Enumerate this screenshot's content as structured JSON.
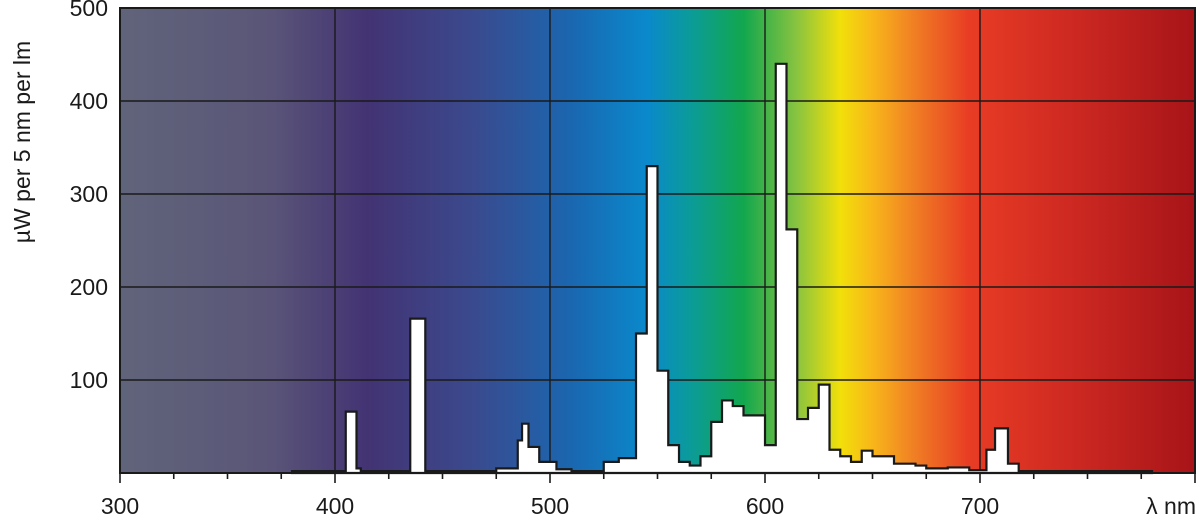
{
  "chart_data": {
    "type": "area",
    "xlabel": "λ nm",
    "ylabel": "µW per 5 nm per lm",
    "xlim": [
      300,
      800
    ],
    "ylim": [
      0,
      500
    ],
    "x_ticks": [
      300,
      400,
      500,
      600,
      700
    ],
    "x_tick_labels": [
      "300",
      "400",
      "500",
      "600",
      "700"
    ],
    "y_ticks": [
      100,
      200,
      300,
      400,
      500
    ],
    "y_tick_labels": [
      "100",
      "200",
      "300",
      "400",
      "500"
    ],
    "grid": true,
    "background": "visible-spectrum gradient (violet to red)",
    "series": [
      {
        "style": "stepped histogram, white fill, black outline",
        "points": [
          [
            380,
            0
          ],
          [
            380,
            2
          ],
          [
            405,
            2
          ],
          [
            405,
            66
          ],
          [
            410,
            66
          ],
          [
            410,
            5
          ],
          [
            412,
            5
          ],
          [
            412,
            2
          ],
          [
            435,
            2
          ],
          [
            435,
            166
          ],
          [
            442,
            166
          ],
          [
            442,
            2
          ],
          [
            475,
            2
          ],
          [
            475,
            5
          ],
          [
            485,
            5
          ],
          [
            485,
            35
          ],
          [
            487,
            35
          ],
          [
            487,
            53
          ],
          [
            490,
            53
          ],
          [
            490,
            28
          ],
          [
            495,
            28
          ],
          [
            495,
            12
          ],
          [
            503,
            12
          ],
          [
            503,
            4
          ],
          [
            510,
            4
          ],
          [
            510,
            2
          ],
          [
            525,
            2
          ],
          [
            525,
            12
          ],
          [
            532,
            12
          ],
          [
            532,
            16
          ],
          [
            540,
            16
          ],
          [
            540,
            150
          ],
          [
            545,
            150
          ],
          [
            545,
            330
          ],
          [
            550,
            330
          ],
          [
            550,
            110
          ],
          [
            555,
            110
          ],
          [
            555,
            30
          ],
          [
            560,
            30
          ],
          [
            560,
            12
          ],
          [
            565,
            12
          ],
          [
            565,
            8
          ],
          [
            570,
            8
          ],
          [
            570,
            18
          ],
          [
            575,
            18
          ],
          [
            575,
            55
          ],
          [
            580,
            55
          ],
          [
            580,
            78
          ],
          [
            585,
            78
          ],
          [
            585,
            72
          ],
          [
            590,
            72
          ],
          [
            590,
            62
          ],
          [
            600,
            62
          ],
          [
            600,
            30
          ],
          [
            605,
            30
          ],
          [
            605,
            440
          ],
          [
            610,
            440
          ],
          [
            610,
            262
          ],
          [
            615,
            262
          ],
          [
            615,
            58
          ],
          [
            620,
            58
          ],
          [
            620,
            70
          ],
          [
            625,
            70
          ],
          [
            625,
            95
          ],
          [
            630,
            95
          ],
          [
            630,
            25
          ],
          [
            635,
            25
          ],
          [
            635,
            18
          ],
          [
            640,
            18
          ],
          [
            640,
            12
          ],
          [
            645,
            12
          ],
          [
            645,
            24
          ],
          [
            650,
            24
          ],
          [
            650,
            18
          ],
          [
            660,
            18
          ],
          [
            660,
            10
          ],
          [
            670,
            10
          ],
          [
            670,
            8
          ],
          [
            675,
            8
          ],
          [
            675,
            5
          ],
          [
            685,
            5
          ],
          [
            685,
            6
          ],
          [
            695,
            6
          ],
          [
            695,
            3
          ],
          [
            703,
            3
          ],
          [
            703,
            25
          ],
          [
            707,
            25
          ],
          [
            707,
            48
          ],
          [
            713,
            48
          ],
          [
            713,
            10
          ],
          [
            718,
            10
          ],
          [
            718,
            2
          ],
          [
            780,
            2
          ],
          [
            780,
            0
          ]
        ]
      }
    ]
  }
}
